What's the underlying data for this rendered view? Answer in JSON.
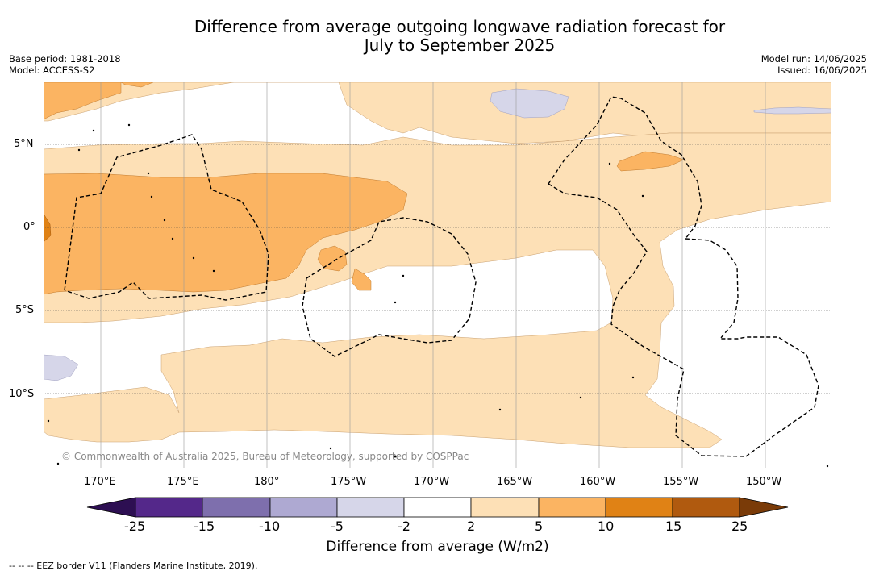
{
  "title": {
    "line1": "Difference from average outgoing longwave radiation forecast for",
    "line2": "July to September 2025"
  },
  "meta_left": {
    "base_period": "Base period: 1981-2018",
    "model": "Model: ACCESS-S2"
  },
  "meta_right": {
    "model_run": "Model run: 14/06/2025",
    "issued": "Issued: 16/06/2025"
  },
  "map": {
    "lat_labels": [
      "5°N",
      "0°",
      "5°S",
      "10°S"
    ],
    "lon_labels": [
      "170°E",
      "175°E",
      "180°",
      "175°W",
      "170°W",
      "165°W",
      "160°W",
      "155°W",
      "150°W"
    ],
    "copyright": "© Commonwealth of Australia 2025, Bureau of Meteorology, supported by COSPPac"
  },
  "colorbar": {
    "ticks": [
      "-25",
      "-15",
      "-10",
      "-5",
      "-2",
      "2",
      "5",
      "10",
      "15",
      "25"
    ],
    "colors": [
      "#2d0f52",
      "#54288a",
      "#7e6fad",
      "#aea9d2",
      "#d6d6e9",
      "#ffffff",
      "#fde0b6",
      "#fbb462",
      "#e08215",
      "#b05a0f",
      "#7a3b08"
    ],
    "label": "Difference from average (W/m2)"
  },
  "legend_note": "--  --  -- EEZ border V11 (Flanders Marine Institute, 2019).",
  "colors": {
    "light_orange": "#fde0b6",
    "orange": "#fbb462",
    "dark_orange": "#e08215",
    "lavender": "#d6d6e9"
  }
}
